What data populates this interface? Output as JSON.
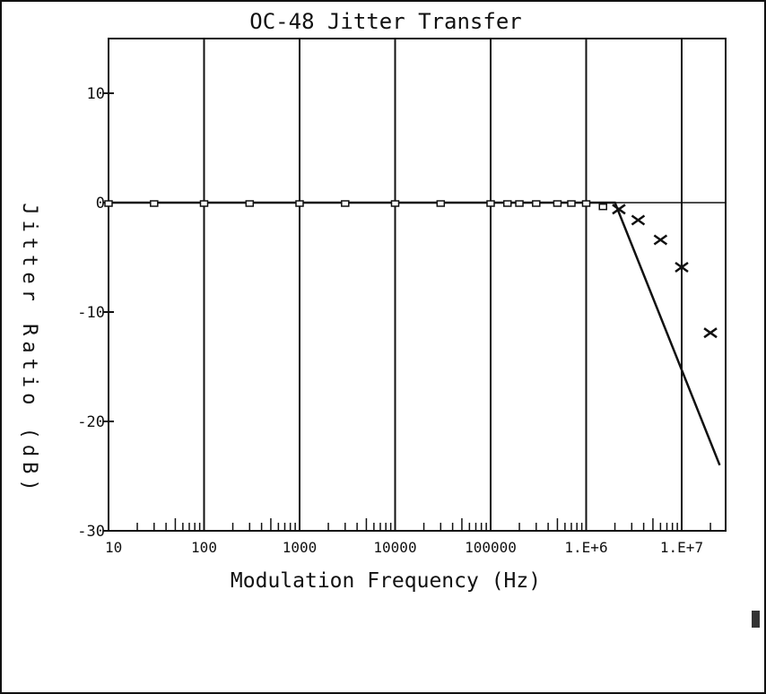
{
  "chart_data": {
    "type": "line",
    "title": "OC-48  Jitter Transfer",
    "xlabel": "Modulation Frequency (Hz)",
    "ylabel": "Jitter Ratio (dB)",
    "x_scale": "log",
    "xlim": [
      10,
      25000000
    ],
    "ylim": [
      -30,
      15
    ],
    "x_tick_values": [
      10,
      100,
      1000,
      10000,
      100000,
      1000000,
      10000000
    ],
    "x_tick_labels": [
      "10",
      "100",
      "1000",
      "10000",
      "100000",
      "1.E+6",
      "1.E+7"
    ],
    "y_tick_values": [
      10,
      0,
      -10,
      -20,
      -30
    ],
    "y_tick_labels": [
      "10",
      "0",
      "-10",
      "-20",
      "-30"
    ],
    "grid": "vertical lines at decades, horizontal line at 0 dB",
    "legend": "none",
    "series": [
      {
        "kind": "mask-line",
        "x": [
          10,
          2000000,
          25000000
        ],
        "y": [
          0,
          0,
          -24
        ]
      },
      {
        "kind": "measured-squares",
        "x": [
          10,
          30,
          100,
          300,
          1000,
          3000,
          10000,
          30000,
          100000,
          150000,
          200000,
          300000,
          500000,
          700000,
          1000000,
          1500000
        ],
        "y": [
          0,
          0,
          0,
          0,
          0,
          0,
          0,
          0,
          0,
          0,
          0,
          0,
          0,
          0,
          0,
          -0.3
        ]
      },
      {
        "kind": "measured-x",
        "x": [
          2200000,
          3500000,
          6000000,
          10000000,
          20000000
        ],
        "y": [
          -0.6,
          -1.6,
          -3.4,
          -5.9,
          -11.9
        ]
      }
    ],
    "colors": {
      "ink": "#111111",
      "background": "#ffffff"
    }
  }
}
